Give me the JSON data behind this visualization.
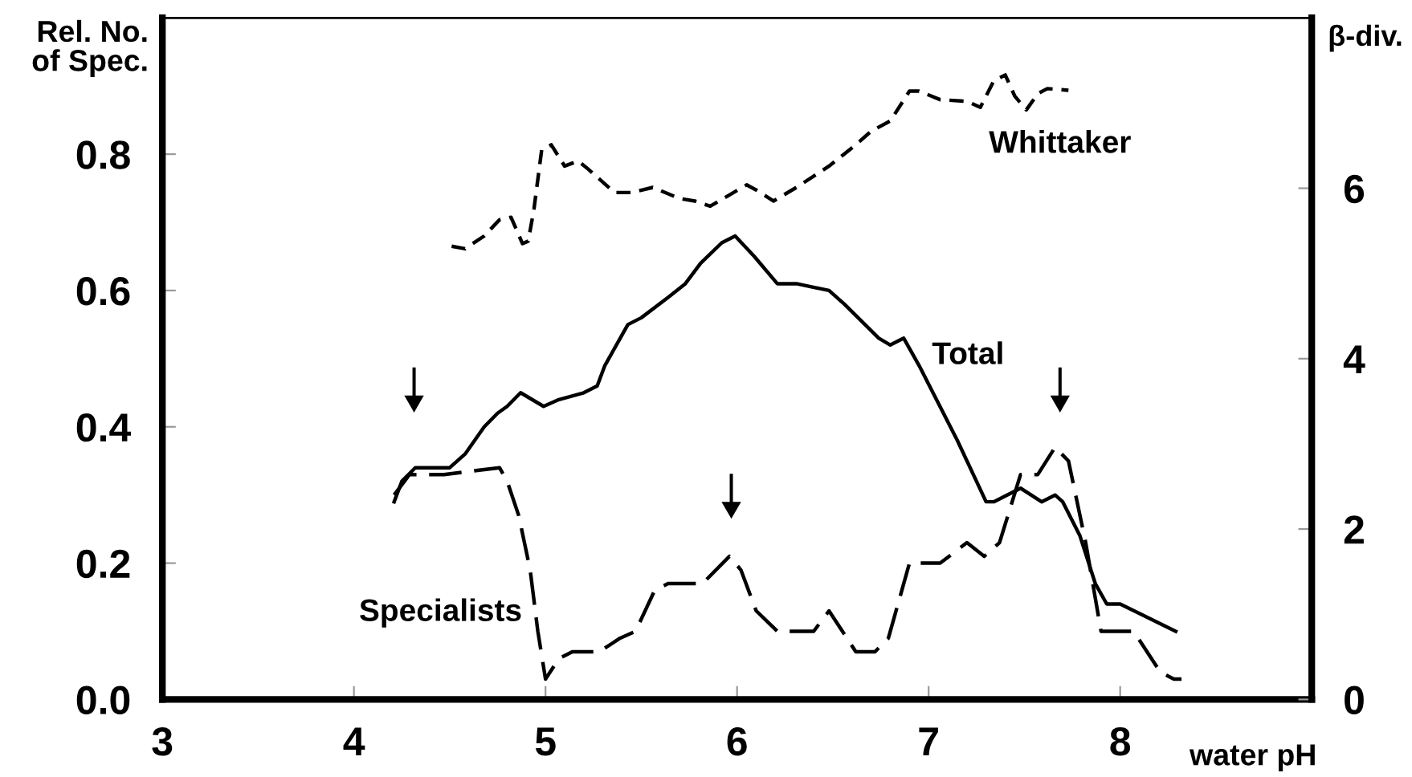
{
  "chart_data": {
    "type": "line",
    "xlabel": "water pH",
    "ylabel": "Rel. No.\nof Spec.",
    "y2label": "β-div.",
    "xlim": [
      3,
      9
    ],
    "xticks": [
      3,
      4,
      5,
      6,
      7,
      8
    ],
    "ylim": [
      0,
      1.0
    ],
    "yticks": [
      {
        "value": 0,
        "label": "0.0"
      },
      0.2,
      0.4,
      0.6,
      0.8
    ],
    "y2lim": [
      0,
      8
    ],
    "y2ticks": [
      0,
      2,
      4,
      6
    ],
    "series": [
      {
        "name": "Total",
        "color": "#000000",
        "line_style": "solid",
        "axis": "y",
        "x": [
          4.21,
          4.25,
          4.32,
          4.39,
          4.5,
          4.58,
          4.68,
          4.75,
          4.8,
          4.87,
          4.93,
          4.99,
          5.07,
          5.2,
          5.27,
          5.31,
          5.43,
          5.5,
          5.64,
          5.73,
          5.81,
          5.92,
          5.99,
          6.09,
          6.21,
          6.31,
          6.48,
          6.56,
          6.74,
          6.8,
          6.87,
          6.95,
          7.15,
          7.3,
          7.34,
          7.48,
          7.59,
          7.66,
          7.7,
          7.79,
          7.87,
          7.93,
          8.0,
          8.29
        ],
        "values": [
          0.29,
          0.32,
          0.34,
          0.34,
          0.34,
          0.36,
          0.4,
          0.42,
          0.43,
          0.45,
          0.44,
          0.43,
          0.44,
          0.45,
          0.46,
          0.49,
          0.55,
          0.56,
          0.59,
          0.61,
          0.64,
          0.67,
          0.68,
          0.65,
          0.61,
          0.61,
          0.6,
          0.58,
          0.53,
          0.52,
          0.53,
          0.49,
          0.38,
          0.29,
          0.29,
          0.31,
          0.29,
          0.3,
          0.29,
          0.24,
          0.17,
          0.14,
          0.14,
          0.1
        ]
      },
      {
        "name": "Specialists",
        "color": "#000000",
        "line_style": "dashed",
        "axis": "y",
        "x": [
          4.21,
          4.29,
          4.47,
          4.76,
          4.8,
          4.86,
          4.92,
          4.96,
          5.0,
          5.07,
          5.14,
          5.28,
          5.39,
          5.47,
          5.57,
          5.64,
          5.75,
          5.82,
          5.96,
          6.02,
          6.1,
          6.21,
          6.4,
          6.48,
          6.62,
          6.72,
          6.79,
          6.9,
          7.06,
          7.2,
          7.29,
          7.37,
          7.48,
          7.57,
          7.66,
          7.73,
          7.82,
          7.9,
          7.98,
          8.07,
          8.21,
          8.28,
          8.32
        ],
        "values": [
          0.3,
          0.33,
          0.33,
          0.34,
          0.32,
          0.27,
          0.19,
          0.1,
          0.03,
          0.06,
          0.07,
          0.07,
          0.09,
          0.1,
          0.16,
          0.17,
          0.17,
          0.17,
          0.21,
          0.19,
          0.13,
          0.1,
          0.1,
          0.13,
          0.07,
          0.07,
          0.09,
          0.2,
          0.2,
          0.23,
          0.21,
          0.23,
          0.33,
          0.33,
          0.37,
          0.35,
          0.23,
          0.1,
          0.1,
          0.1,
          0.04,
          0.03,
          0.03
        ]
      },
      {
        "name": "Whittaker",
        "color": "#000000",
        "line_style": "dotted",
        "axis": "y2",
        "x": [
          4.51,
          4.58,
          4.68,
          4.76,
          4.82,
          4.88,
          4.91,
          4.94,
          4.98,
          5.03,
          5.1,
          5.17,
          5.22,
          5.36,
          5.45,
          5.56,
          5.7,
          5.78,
          5.86,
          6.05,
          6.1,
          6.19,
          6.31,
          6.48,
          6.62,
          6.7,
          6.8,
          6.9,
          6.95,
          7.06,
          7.2,
          7.27,
          7.34,
          7.4,
          7.45,
          7.51,
          7.57,
          7.62,
          7.73
        ],
        "values": [
          5.32,
          5.29,
          5.44,
          5.63,
          5.66,
          5.35,
          5.38,
          5.76,
          6.45,
          6.51,
          6.26,
          6.32,
          6.23,
          5.95,
          5.95,
          6.01,
          5.88,
          5.85,
          5.79,
          6.04,
          5.98,
          5.85,
          6.01,
          6.26,
          6.51,
          6.67,
          6.79,
          7.14,
          7.14,
          7.04,
          7.02,
          6.95,
          7.26,
          7.33,
          7.08,
          6.92,
          7.11,
          7.17,
          7.15
        ]
      }
    ]
  }
}
